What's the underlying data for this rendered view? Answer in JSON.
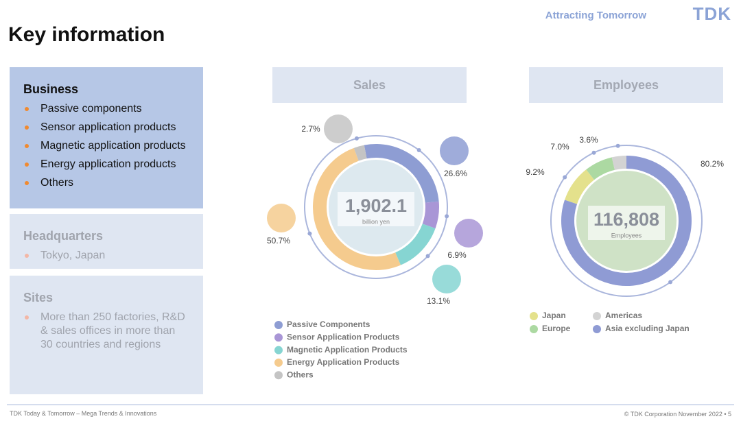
{
  "header": {
    "title": "Key information",
    "tagline": "Attracting Tomorrow",
    "logo": "TDK"
  },
  "sidebar": {
    "business": {
      "title": "Business",
      "items": [
        "Passive components",
        "Sensor application products",
        "Magnetic application products",
        "Energy application products",
        "Others"
      ]
    },
    "headquarters": {
      "title": "Headquarters",
      "items": [
        "Tokyo, Japan"
      ]
    },
    "sites": {
      "title": "Sites",
      "items": [
        "More than 250 factories, R&D & sales offices in more than 30 countries and regions"
      ]
    }
  },
  "chart_data": [
    {
      "type": "donut",
      "title": "Sales",
      "center_value": "1,902.1",
      "center_label": "billion yen",
      "categories": [
        "Passive Components",
        "Sensor Application Products",
        "Magnetic Application Products",
        "Energy Application Products",
        "Others"
      ],
      "values": [
        26.6,
        6.9,
        13.1,
        50.7,
        2.7
      ],
      "value_labels": [
        "26.6%",
        "6.9%",
        "13.1%",
        "50.7%",
        "2.7%"
      ],
      "colors": [
        "#8e9dd3",
        "#a996d6",
        "#86d5d2",
        "#f5cb8e",
        "#c4c4c4"
      ]
    },
    {
      "type": "donut",
      "title": "Employees",
      "center_value": "116,808",
      "center_label": "Employees",
      "categories": [
        "Japan",
        "Europe",
        "Americas",
        "Asia excluding Japan"
      ],
      "values": [
        9.2,
        7.0,
        3.6,
        80.2
      ],
      "value_labels": [
        "9.2%",
        "7.0%",
        "3.6%",
        "80.2%"
      ],
      "colors": [
        "#e4e18c",
        "#acd9a2",
        "#d3d3d3",
        "#8f9bd4"
      ]
    }
  ],
  "footer": {
    "left": "TDK Today & Tomorrow – Mega Trends & Innovations",
    "right": "© TDK Corporation November 2022 • 5"
  }
}
